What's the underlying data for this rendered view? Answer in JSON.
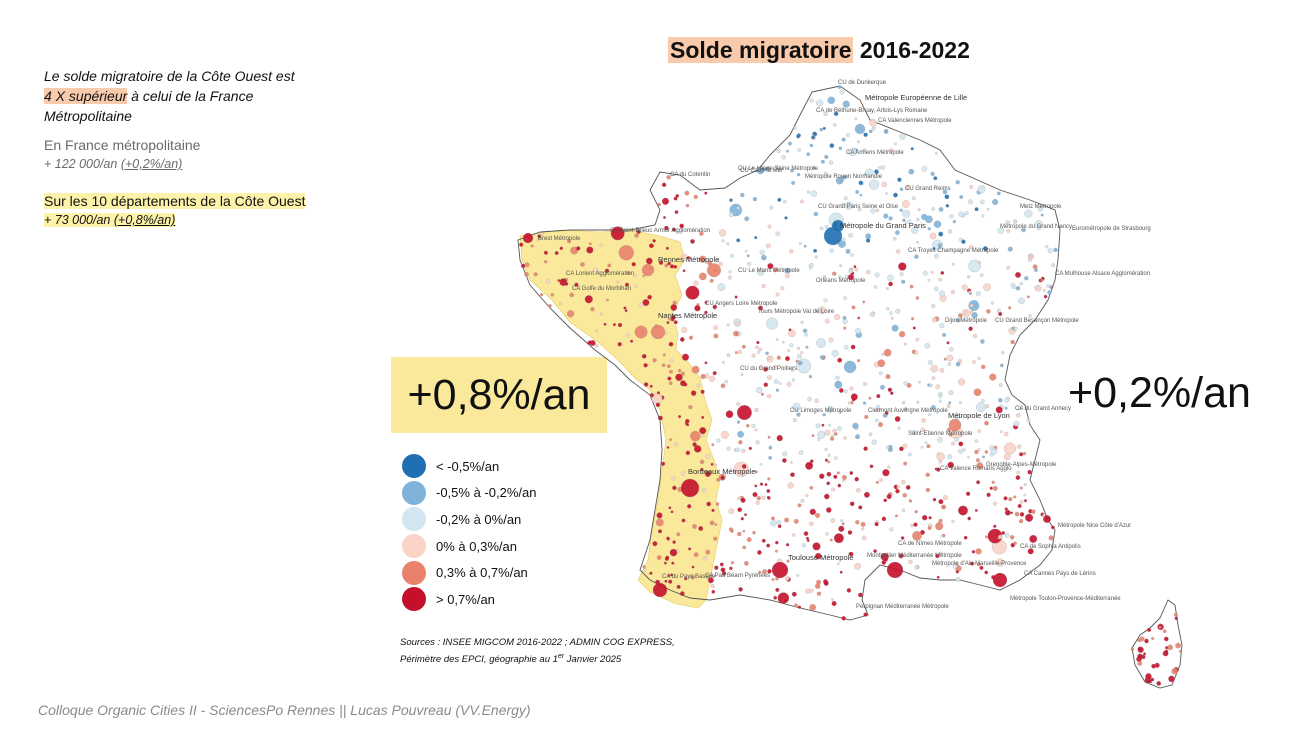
{
  "title": {
    "highlight": "Solde migratoire",
    "rest": " 2016-2022"
  },
  "intro": {
    "line1": "Le solde migratoire de la Côte Ouest est",
    "highlight": "4 X supérieur",
    "line2_rest": " à celui de la France",
    "line3": "Métropolitaine"
  },
  "france": {
    "label": "En France métropolitaine",
    "value": "+ 122 000/an ",
    "pct": "(+0,2%/an)"
  },
  "ouest": {
    "label": "Sur les 10 départements de la Côte Ouest",
    "value": "+ 73 000/an ",
    "pct": "(+0,8%/an)"
  },
  "stats": {
    "west": "+0,8%/an",
    "france": "+0,2%/an"
  },
  "legend": [
    {
      "label": "< -0,5%/an",
      "color": "#1f6fb2"
    },
    {
      "label": "-0,5% à -0,2%/an",
      "color": "#7fb3d9"
    },
    {
      "label": "-0,2% à 0%/an",
      "color": "#d3e5f0"
    },
    {
      "label": "0% à 0,3%/an",
      "color": "#f8d3c6"
    },
    {
      "label": "0,3% à 0,7%/an",
      "color": "#e8826b"
    },
    {
      "label": "> 0,7%/an",
      "color": "#c4102a"
    }
  ],
  "sources": {
    "line1": "Sources : INSEE MIGCOM 2016-2022 ; ADMIN COG EXPRESS,",
    "line2_a": "Périmètre des EPCI, géographie au 1",
    "line2_sup": "er",
    "line2_b": " Janvier 2025"
  },
  "footer": "Colloque Organic Cities II - SciencesPo Rennes || Lucas Pouvreau (VV.Energy)",
  "map": {
    "labels": [
      "CU de Dunkerque",
      "Métropole Européenne de Lille",
      "CA de Béthune-Bruay, Artois-Lys Romane",
      "CA Valenciennes Métropole",
      "CA Amiens Métropole",
      "CU Grand Reims",
      "Métropole Rouen Normandie",
      "CU Caen la Mer",
      "CU Le Havre Seine Métropole",
      "CA du Cotentin",
      "CU Grand Paris Seine et Oise",
      "Métropole du Grand Paris",
      "Metz Métropole",
      "Métropole du Grand Nancy",
      "Eurométropole de Strasbourg",
      "CA Mulhouse Alsace Agglomération",
      "CA Saint-Brieuc Armor Agglomération",
      "Brest Métropole",
      "Rennes Métropole",
      "CA Lorient Agglomération",
      "CA Golfe du Morbihan",
      "Nantes Métropole",
      "CU Le Mans Métropole",
      "CU Angers Loire Métropole",
      "Orléans Métropole",
      "Tours Métropole Val de Loire",
      "CA Troyes Champagne Métropole",
      "Dijon Métropole",
      "CU Grand Besançon Métropole",
      "CU du Grand Poitiers",
      "CU Limoges Métropole",
      "Clermont Auvergne Métropole",
      "Saint-Etienne Métropole",
      "Métropole de Lyon",
      "CA du Grand Annecy",
      "Grenoble-Alpes-Métropole",
      "CA Valence Romans Agglo",
      "Bordeaux Métropole",
      "Toulouse Métropole",
      "Montpellier Méditerranée Métropole",
      "CA de Nîmes Métropole",
      "Métropole d'Aix-Marseille-Provence",
      "Métropole Toulon-Provence-Méditerranée",
      "Métropole Nice Côte d'Azur",
      "CA de Sophia Antipolis",
      "CA Cannes Pays de Lérins",
      "Perpignan Méditerranée Métropole",
      "CA du Pays Basque",
      "CA Pau Béarn Pyrénées"
    ]
  }
}
